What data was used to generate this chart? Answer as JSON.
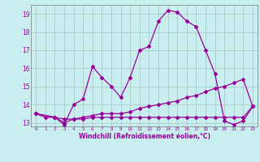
{
  "title": "",
  "xlabel": "Windchill (Refroidissement éolien,°C)",
  "bg_color": "#c8eef0",
  "line_color": "#990099",
  "grid_color": "#b0c8c8",
  "xlim": [
    -0.5,
    23.5
  ],
  "ylim": [
    12.8,
    19.5
  ],
  "yticks": [
    13,
    14,
    15,
    16,
    17,
    18,
    19
  ],
  "xticks": [
    0,
    1,
    2,
    3,
    4,
    5,
    6,
    7,
    8,
    9,
    10,
    11,
    12,
    13,
    14,
    15,
    16,
    17,
    18,
    19,
    20,
    21,
    22,
    23
  ],
  "series1_x": [
    0,
    1,
    2,
    3,
    4,
    5,
    6,
    7,
    8,
    9,
    10,
    11,
    12,
    13,
    14,
    15,
    16,
    17,
    18,
    19,
    20,
    21,
    22,
    23
  ],
  "series1_y": [
    13.5,
    13.3,
    13.3,
    12.9,
    14.0,
    14.3,
    16.1,
    15.5,
    15.0,
    14.4,
    15.5,
    17.0,
    17.2,
    18.6,
    19.2,
    19.1,
    18.6,
    18.3,
    17.0,
    15.7,
    13.1,
    12.9,
    13.1,
    13.9
  ],
  "series2_x": [
    0,
    2,
    3,
    4,
    5,
    6,
    7,
    8,
    9,
    10,
    11,
    12,
    13,
    14,
    15,
    16,
    17,
    18,
    19,
    20,
    21,
    22,
    23
  ],
  "series2_y": [
    13.5,
    13.3,
    13.2,
    13.2,
    13.3,
    13.4,
    13.5,
    13.5,
    13.5,
    13.6,
    13.8,
    13.9,
    14.0,
    14.1,
    14.2,
    14.4,
    14.5,
    14.7,
    14.9,
    15.0,
    15.2,
    15.4,
    13.9
  ],
  "series3_x": [
    0,
    2,
    3,
    4,
    5,
    6,
    7,
    8,
    9,
    10,
    11,
    12,
    13,
    14,
    15,
    16,
    17,
    18,
    19,
    20,
    21,
    22,
    23
  ],
  "series3_y": [
    13.5,
    13.3,
    13.0,
    13.2,
    13.2,
    13.3,
    13.3,
    13.3,
    13.3,
    13.3,
    13.3,
    13.3,
    13.3,
    13.3,
    13.3,
    13.3,
    13.3,
    13.3,
    13.3,
    13.3,
    13.3,
    13.3,
    13.9
  ]
}
